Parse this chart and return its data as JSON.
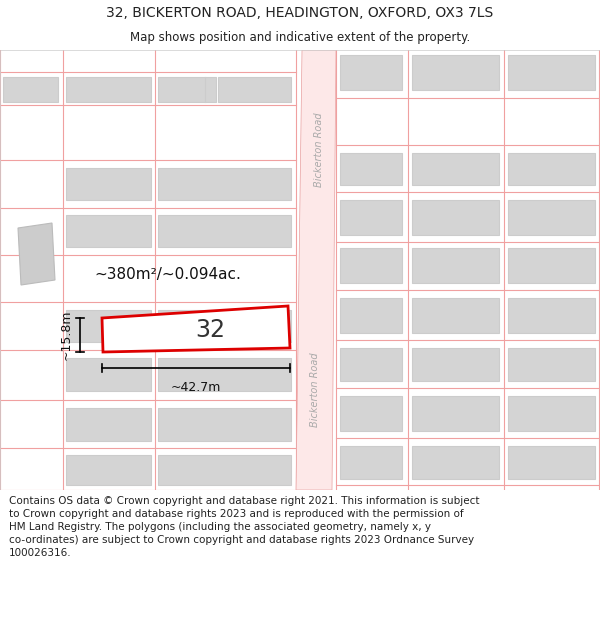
{
  "title_line1": "32, BICKERTON ROAD, HEADINGTON, OXFORD, OX3 7LS",
  "title_line2": "Map shows position and indicative extent of the property.",
  "footer_text": "Contains OS data © Crown copyright and database right 2021. This information is subject\nto Crown copyright and database rights 2023 and is reproduced with the permission of\nHM Land Registry. The polygons (including the associated geometry, namely x, y\nco-ordinates) are subject to Crown copyright and database rights 2023 Ordnance Survey\n100026316.",
  "map_bg": "#ffffff",
  "road_fill": "#fde8e8",
  "road_line": "#e8a0a0",
  "prop_line_color": "#f0a0a0",
  "building_fill": "#d4d4d4",
  "building_edge": "#cccccc",
  "highlight_fill": "#ffffff",
  "highlight_stroke": "#dd0000",
  "road_label": "Bickerton Road",
  "property_label": "32",
  "area_label": "~380m²/~0.094ac.",
  "width_label": "~42.7m",
  "height_label": "~15.8m"
}
